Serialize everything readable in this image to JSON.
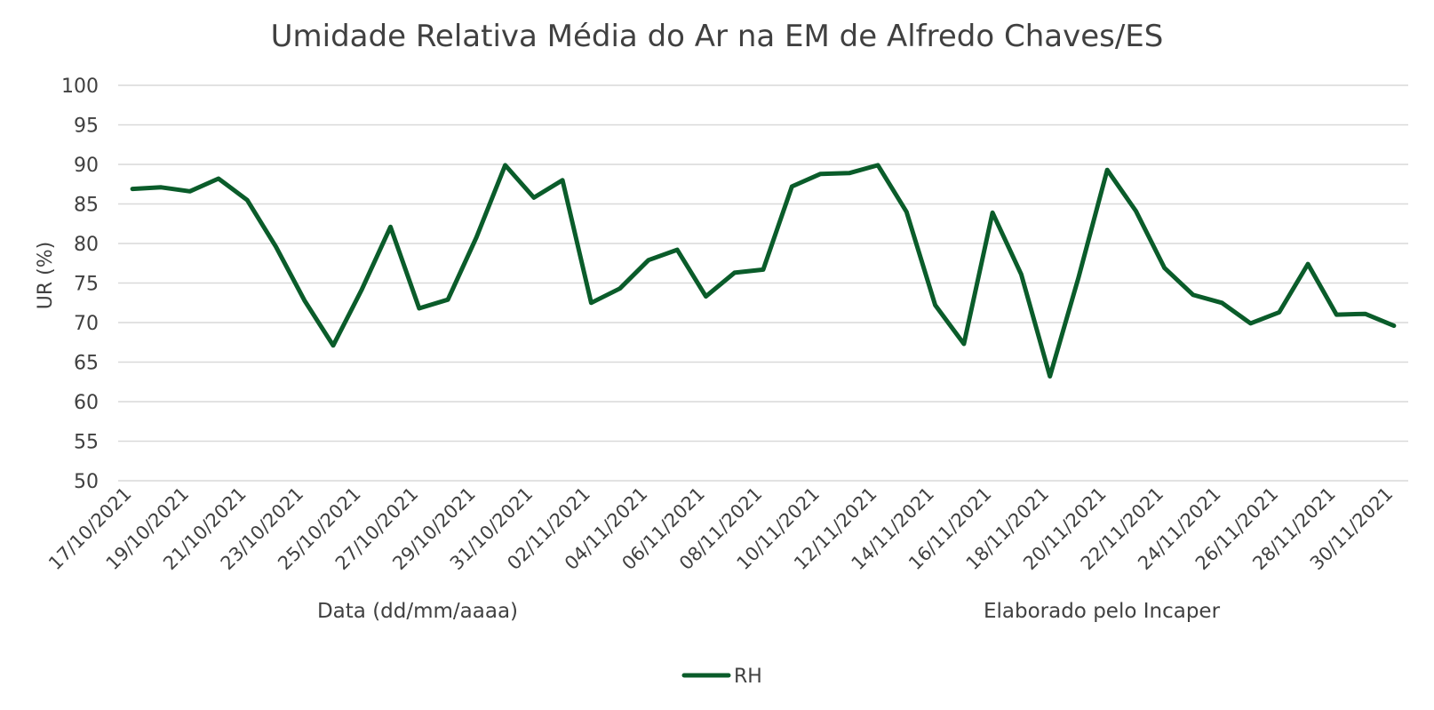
{
  "chart_data": {
    "type": "line",
    "title": "Umidade Relativa Média do Ar na EM de Alfredo Chaves/ES",
    "xlabel": "Data (dd/mm/aaaa)",
    "ylabel": "UR (%)",
    "note": "Elaborado pelo Incaper",
    "ylim": [
      50,
      100
    ],
    "y_ticks": [
      50,
      55,
      60,
      65,
      70,
      75,
      80,
      85,
      90,
      95,
      100
    ],
    "grid": true,
    "legend_position": "bottom",
    "x": [
      "17/10/2021",
      "18/10/2021",
      "19/10/2021",
      "20/10/2021",
      "21/10/2021",
      "22/10/2021",
      "23/10/2021",
      "24/10/2021",
      "25/10/2021",
      "26/10/2021",
      "27/10/2021",
      "28/10/2021",
      "29/10/2021",
      "30/10/2021",
      "31/10/2021",
      "01/11/2021",
      "02/11/2021",
      "03/11/2021",
      "04/11/2021",
      "05/11/2021",
      "06/11/2021",
      "07/11/2021",
      "08/11/2021",
      "09/11/2021",
      "10/11/2021",
      "11/11/2021",
      "12/11/2021",
      "13/11/2021",
      "14/11/2021",
      "15/11/2021",
      "16/11/2021",
      "17/11/2021",
      "18/11/2021",
      "19/11/2021",
      "20/11/2021",
      "21/11/2021",
      "22/11/2021",
      "23/11/2021",
      "24/11/2021",
      "25/11/2021",
      "26/11/2021",
      "27/11/2021",
      "28/11/2021",
      "29/11/2021",
      "30/11/2021"
    ],
    "x_tick_labels": [
      "17/10/2021",
      "19/10/2021",
      "21/10/2021",
      "23/10/2021",
      "25/10/2021",
      "27/10/2021",
      "29/10/2021",
      "31/10/2021",
      "02/11/2021",
      "04/11/2021",
      "06/11/2021",
      "08/11/2021",
      "10/11/2021",
      "12/11/2021",
      "14/11/2021",
      "16/11/2021",
      "18/11/2021",
      "20/11/2021",
      "22/11/2021",
      "24/11/2021",
      "26/11/2021",
      "28/11/2021",
      "30/11/2021"
    ],
    "series": [
      {
        "name": "RH",
        "color": "#0a5c2a",
        "values": [
          86.9,
          87.1,
          86.6,
          88.2,
          85.5,
          79.6,
          72.8,
          67.1,
          74.2,
          82.1,
          71.8,
          72.9,
          80.8,
          89.9,
          85.8,
          88.0,
          72.5,
          74.3,
          77.9,
          79.2,
          73.3,
          76.3,
          76.7,
          87.2,
          88.8,
          88.9,
          89.9,
          84.0,
          72.2,
          67.3,
          83.9,
          76.1,
          63.2,
          75.7,
          89.3,
          84.1,
          76.9,
          73.5,
          72.5,
          69.9,
          71.3,
          77.4,
          71.0,
          71.1,
          69.6
        ]
      }
    ]
  }
}
